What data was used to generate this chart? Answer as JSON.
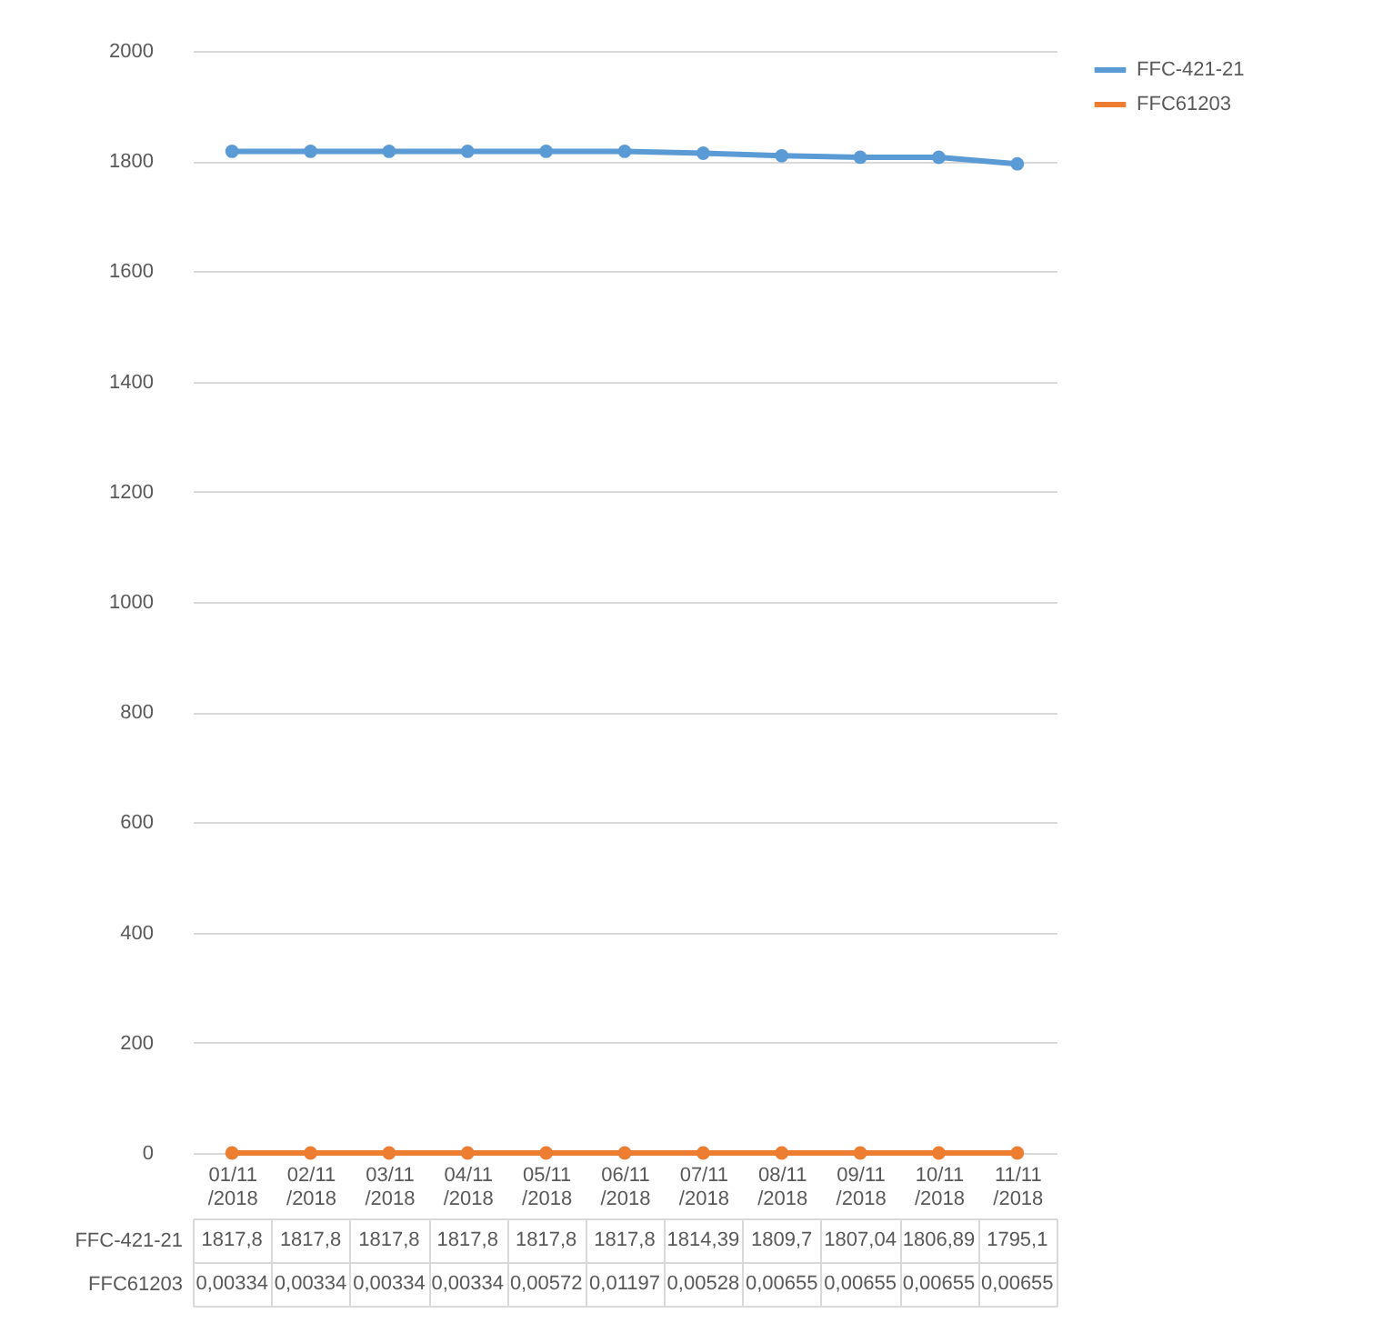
{
  "chart_data": {
    "type": "line",
    "categories": [
      "01/11/2018",
      "02/11/2018",
      "03/11/2018",
      "04/11/2018",
      "05/11/2018",
      "06/11/2018",
      "07/11/2018",
      "08/11/2018",
      "09/11/2018",
      "10/11/2018",
      "11/11/2018"
    ],
    "series": [
      {
        "name": "FFC-421-21",
        "color": "#5b9bd5",
        "values": [
          1817.8,
          1817.8,
          1817.8,
          1817.8,
          1817.8,
          1817.8,
          1814.39,
          1809.7,
          1807.04,
          1806.89,
          1795.1
        ],
        "value_labels": [
          "1817,8",
          "1817,8",
          "1817,8",
          "1817,8",
          "1817,8",
          "1817,8",
          "1814,39",
          "1809,7",
          "1807,04",
          "1806,89",
          "1795,1"
        ]
      },
      {
        "name": "FFC61203",
        "color": "#ed7d31",
        "values": [
          0.00334,
          0.00334,
          0.00334,
          0.00334,
          0.00572,
          0.01197,
          0.00528,
          0.00655,
          0.00655,
          0.00655,
          0.00655
        ],
        "value_labels": [
          "0,00334",
          "0,00334",
          "0,00334",
          "0,00334",
          "0,00572",
          "0,01197",
          "0,00528",
          "0,00655",
          "0,00655",
          "0,00655",
          "0,00655"
        ]
      }
    ],
    "ylim": [
      0,
      2000
    ],
    "yticks": [
      0,
      200,
      400,
      600,
      800,
      1000,
      1200,
      1400,
      1600,
      1800,
      2000
    ],
    "grid": "y",
    "legend": "right",
    "marker": "circle"
  }
}
